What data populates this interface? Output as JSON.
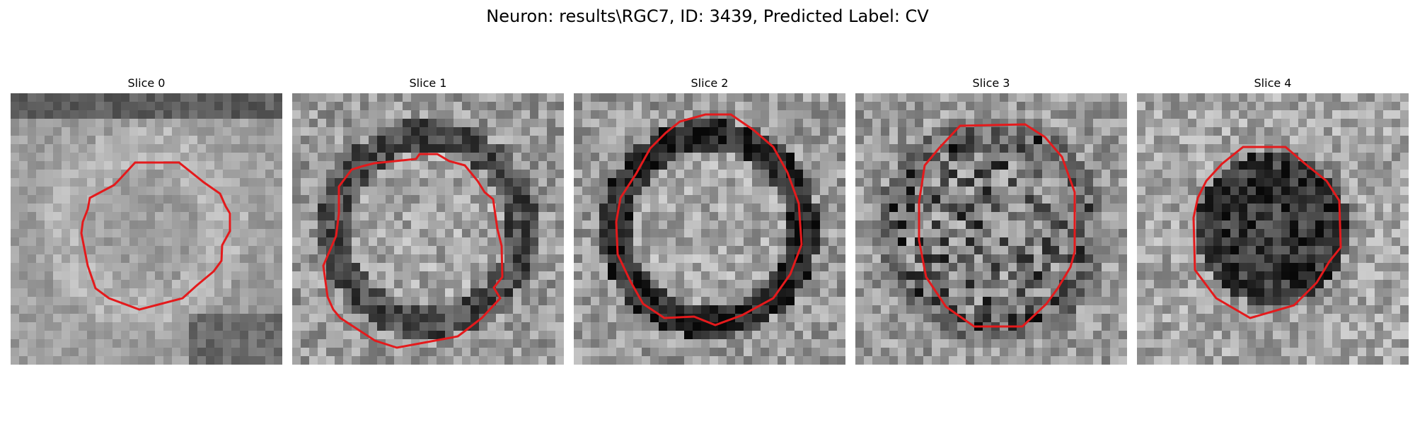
{
  "figure": {
    "title": "Neuron: results\\RGC7, ID: 3439, Predicted Label: CV"
  },
  "panels": [
    {
      "title": "Slice 0",
      "contour_color": "#e41a1c",
      "seed": 11,
      "pattern": "blurry-bright-ring"
    },
    {
      "title": "Slice 1",
      "contour_color": "#e41a1c",
      "seed": 23,
      "pattern": "dark-ring"
    },
    {
      "title": "Slice 2",
      "contour_color": "#e41a1c",
      "seed": 37,
      "pattern": "dark-ring-strong"
    },
    {
      "title": "Slice 3",
      "contour_color": "#e41a1c",
      "seed": 51,
      "pattern": "dark-patches"
    },
    {
      "title": "Slice 4",
      "contour_color": "#e41a1c",
      "seed": 67,
      "pattern": "dark-center"
    }
  ],
  "colors": {
    "background": "#ffffff",
    "contour": "#e41a1c"
  }
}
